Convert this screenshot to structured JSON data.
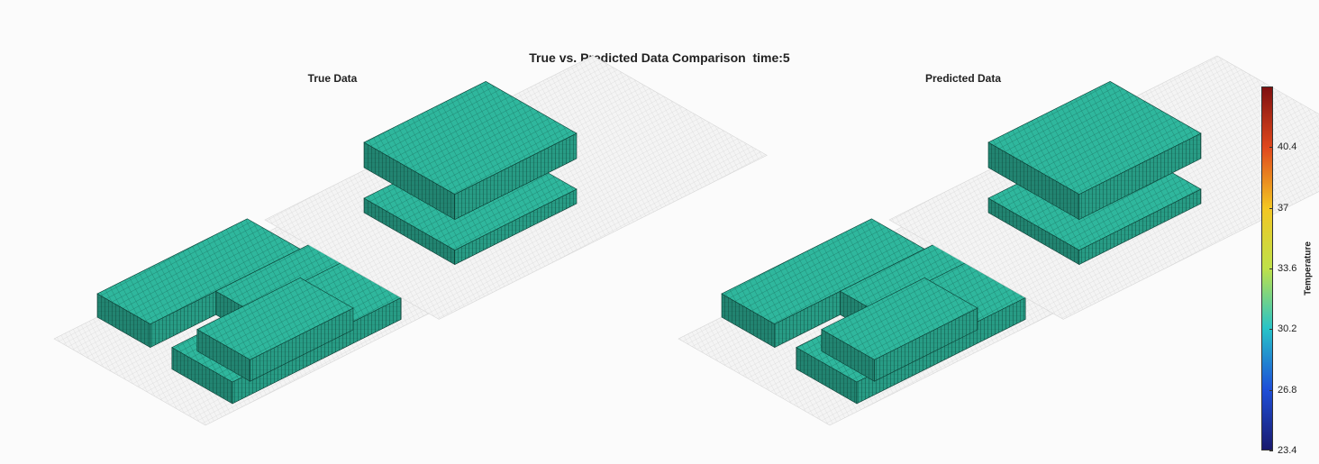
{
  "chart_data": {
    "type": "3d-voxel",
    "title": "True vs. Predicted Data Comparison  time:5",
    "panels": [
      {
        "title": "True Data"
      },
      {
        "title": "Predicted Data"
      }
    ],
    "colorbar": {
      "label": "Temperature",
      "min": 23.4,
      "max": 43.8,
      "ticks": [
        23.4,
        26.8,
        30.2,
        33.6,
        37,
        40.4
      ],
      "colormap": "jet",
      "colors": [
        "#1a1a6e",
        "#1f4fd8",
        "#27c3c8",
        "#bfe14a",
        "#f3c623",
        "#e0481d",
        "#7f1010"
      ]
    },
    "value": 30.2,
    "block_color": "#2fb79d",
    "grid": true
  }
}
